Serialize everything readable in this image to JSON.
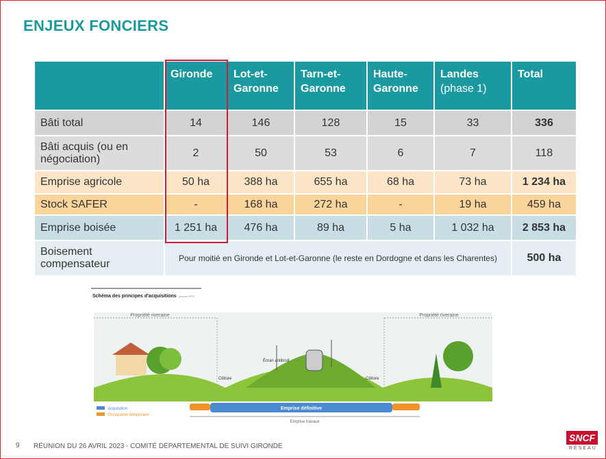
{
  "title": "ENJEUX FONCIERS",
  "table": {
    "columns": [
      {
        "label": "Gironde"
      },
      {
        "label": "Lot-et-Garonne"
      },
      {
        "label": "Tarn-et-Garonne"
      },
      {
        "label": "Haute-Garonne"
      },
      {
        "label": "Landes",
        "note": "(phase 1)"
      },
      {
        "label": "Total"
      }
    ],
    "rows": [
      {
        "label": "Bâti total",
        "cells": [
          "14",
          "146",
          "128",
          "15",
          "33",
          "336"
        ],
        "total_bold": true,
        "color": "#d3d3d3"
      },
      {
        "label": "Bâti acquis (ou en négociation)",
        "cells": [
          "2",
          "50",
          "53",
          "6",
          "7",
          "118"
        ],
        "total_bold": false,
        "color": "#dcdcdc"
      },
      {
        "label": "Emprise agricole",
        "cells": [
          "50 ha",
          "388 ha",
          "655 ha",
          "68 ha",
          "73 ha",
          "1 234 ha"
        ],
        "total_bold": true,
        "color": "#fce5c6"
      },
      {
        "label": "Stock SAFER",
        "cells": [
          "-",
          "168 ha",
          "272 ha",
          "-",
          "19 ha",
          "459 ha"
        ],
        "total_bold": false,
        "color": "#f9d49b"
      },
      {
        "label": "Emprise boisée",
        "cells": [
          "1 251 ha",
          "476 ha",
          "89 ha",
          "5 ha",
          "1 032 ha",
          "2 853 ha"
        ],
        "total_bold": true,
        "color": "#c9dde5"
      },
      {
        "label": "Boisement compensateur",
        "note": "Pour moitié en Gironde et Lot-et-Garonne (le reste en Dordogne et dans les Charentes)",
        "total": "500 ha",
        "total_bold": true,
        "color": "#e5eef2"
      }
    ]
  },
  "diagram": {
    "title": "Schéma des principes d'acquisitions",
    "source": "[source RFF]",
    "left_property": "Propriété riveraine",
    "right_property": "Propriété riveraine",
    "screen": "Écran antibruit",
    "fence_left": "Clôture",
    "fence_right": "Clôture",
    "legend": [
      {
        "label": "Acquisition",
        "color": "#4a8ad0"
      },
      {
        "label": "Occupation temporaire",
        "color": "#f0932b"
      }
    ],
    "final": "Emprise définitive",
    "works": "Emprise travaux"
  },
  "footer": {
    "page": "9",
    "text": "RÉUNION DU 26 AVRIL 2023 - COMITÉ DÉPARTEMENTAL DE SUIVI  GIRONDE",
    "logo": "SNCF",
    "logo_sub": "RÉSEAU"
  }
}
